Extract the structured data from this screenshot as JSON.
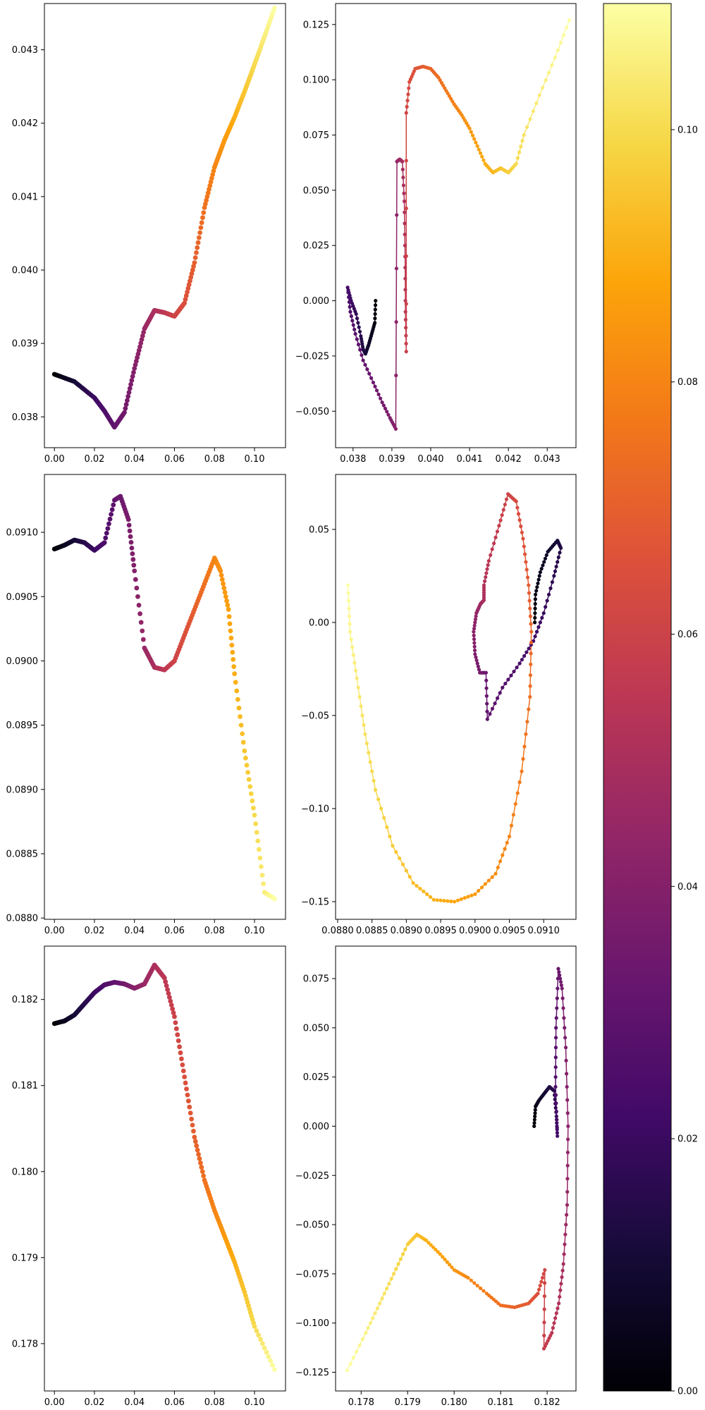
{
  "chart_data": [
    {
      "type": "scatter",
      "panel": "row1-left",
      "title": "",
      "xlabel": "",
      "ylabel": "",
      "xlim": [
        -0.005,
        0.1155
      ],
      "ylim": [
        0.03758,
        0.04363
      ],
      "xticks": [
        "0.00",
        "0.02",
        "0.04",
        "0.06",
        "0.08",
        "0.10"
      ],
      "yticks": [
        "0.038",
        "0.039",
        "0.040",
        "0.041",
        "0.042",
        "0.043"
      ],
      "colormap": "inferno",
      "color_by": "x",
      "connect": false,
      "grid": false,
      "path": [
        [
          0.0,
          0.03858
        ],
        [
          0.01,
          0.03848
        ],
        [
          0.02,
          0.03826
        ],
        [
          0.025,
          0.03808
        ],
        [
          0.03,
          0.03786
        ],
        [
          0.035,
          0.03806
        ],
        [
          0.04,
          0.03866
        ],
        [
          0.045,
          0.0392
        ],
        [
          0.05,
          0.03945
        ],
        [
          0.055,
          0.03942
        ],
        [
          0.06,
          0.03937
        ],
        [
          0.065,
          0.03955
        ],
        [
          0.07,
          0.0401
        ],
        [
          0.075,
          0.04085
        ],
        [
          0.08,
          0.0414
        ],
        [
          0.085,
          0.04177
        ],
        [
          0.09,
          0.04208
        ],
        [
          0.095,
          0.04243
        ],
        [
          0.1,
          0.0428
        ],
        [
          0.105,
          0.04318
        ],
        [
          0.11,
          0.04357
        ]
      ]
    },
    {
      "type": "scatter",
      "panel": "row1-right",
      "title": "",
      "xlabel": "",
      "ylabel": "",
      "xlim": [
        0.03755,
        0.04374
      ],
      "ylim": [
        -0.0665,
        0.1345
      ],
      "xticks": [
        "0.038",
        "0.039",
        "0.040",
        "0.041",
        "0.042",
        "0.043"
      ],
      "yticks": [
        "−0.050",
        "−0.025",
        "0.000",
        "0.025",
        "0.050",
        "0.075",
        "0.100",
        "0.125"
      ],
      "colormap": "inferno",
      "color_range": [
        0,
        0.11
      ],
      "connect": true,
      "grid": false,
      "path": [
        [
          0.03858,
          0.0
        ],
        [
          0.03856,
          -0.01
        ],
        [
          0.03848,
          -0.015
        ],
        [
          0.0384,
          -0.02
        ],
        [
          0.03832,
          -0.024
        ],
        [
          0.03826,
          -0.022
        ],
        [
          0.0382,
          -0.016
        ],
        [
          0.03808,
          -0.006
        ],
        [
          0.03795,
          0.0
        ],
        [
          0.03786,
          0.006
        ],
        [
          0.03793,
          -0.005
        ],
        [
          0.03806,
          -0.015
        ],
        [
          0.03826,
          -0.027
        ],
        [
          0.03852,
          -0.037
        ],
        [
          0.03875,
          -0.046
        ],
        [
          0.03895,
          -0.053
        ],
        [
          0.0391,
          -0.058
        ],
        [
          0.03913,
          0.063
        ],
        [
          0.0392,
          0.064
        ],
        [
          0.03927,
          0.063
        ],
        [
          0.03932,
          0.045
        ],
        [
          0.03934,
          0.02
        ],
        [
          0.03935,
          -0.005
        ],
        [
          0.03937,
          -0.023
        ],
        [
          0.03937,
          0.085
        ],
        [
          0.03945,
          0.099
        ],
        [
          0.0396,
          0.105
        ],
        [
          0.0398,
          0.106
        ],
        [
          0.04,
          0.105
        ],
        [
          0.0402,
          0.101
        ],
        [
          0.0404,
          0.095
        ],
        [
          0.0406,
          0.089
        ],
        [
          0.0408,
          0.084
        ],
        [
          0.041,
          0.078
        ],
        [
          0.0412,
          0.07
        ],
        [
          0.0414,
          0.062
        ],
        [
          0.0416,
          0.058
        ],
        [
          0.0418,
          0.06
        ],
        [
          0.042,
          0.058
        ],
        [
          0.0422,
          0.062
        ],
        [
          0.0424,
          0.075
        ],
        [
          0.0428,
          0.093
        ],
        [
          0.0432,
          0.11
        ],
        [
          0.04357,
          0.127
        ]
      ]
    },
    {
      "type": "scatter",
      "panel": "row2-left",
      "title": "",
      "xlabel": "",
      "ylabel": "",
      "xlim": [
        -0.005,
        0.1155
      ],
      "ylim": [
        0.08799,
        0.09145
      ],
      "xticks": [
        "0.00",
        "0.02",
        "0.04",
        "0.06",
        "0.08",
        "0.10"
      ],
      "yticks": [
        "0.0880",
        "0.0885",
        "0.0890",
        "0.0895",
        "0.0900",
        "0.0905",
        "0.0910"
      ],
      "colormap": "inferno",
      "color_by": "x",
      "connect": false,
      "grid": false,
      "path": [
        [
          0.0,
          0.09087
        ],
        [
          0.005,
          0.0909
        ],
        [
          0.01,
          0.09094
        ],
        [
          0.015,
          0.09092
        ],
        [
          0.02,
          0.09086
        ],
        [
          0.025,
          0.09092
        ],
        [
          0.03,
          0.09125
        ],
        [
          0.033,
          0.09128
        ],
        [
          0.037,
          0.0911
        ],
        [
          0.04,
          0.0907
        ],
        [
          0.045,
          0.0901
        ],
        [
          0.05,
          0.08995
        ],
        [
          0.055,
          0.08993
        ],
        [
          0.06,
          0.09
        ],
        [
          0.065,
          0.0902
        ],
        [
          0.07,
          0.0904
        ],
        [
          0.075,
          0.0906
        ],
        [
          0.08,
          0.0908
        ],
        [
          0.083,
          0.0907
        ],
        [
          0.087,
          0.0904
        ],
        [
          0.09,
          0.0899
        ],
        [
          0.095,
          0.0893
        ],
        [
          0.1,
          0.0888
        ],
        [
          0.105,
          0.0882
        ],
        [
          0.11,
          0.08815
        ]
      ]
    },
    {
      "type": "scatter",
      "panel": "row2-right",
      "title": "",
      "xlabel": "",
      "ylabel": "",
      "xlim": [
        0.08797,
        0.09147
      ],
      "ylim": [
        -0.1595,
        0.0795
      ],
      "xticks": [
        "0.0880",
        "0.0885",
        "0.0890",
        "0.0895",
        "0.0900",
        "0.0905",
        "0.0910"
      ],
      "yticks": [
        "−0.15",
        "−0.10",
        "−0.05",
        "0.00",
        "0.05"
      ],
      "colormap": "inferno",
      "color_range": [
        0,
        0.11
      ],
      "connect": true,
      "grid": false,
      "path": [
        [
          0.09087,
          0.0
        ],
        [
          0.09088,
          0.015
        ],
        [
          0.09095,
          0.027
        ],
        [
          0.09106,
          0.038
        ],
        [
          0.0912,
          0.044
        ],
        [
          0.09125,
          0.04
        ],
        [
          0.09115,
          0.025
        ],
        [
          0.091,
          0.005
        ],
        [
          0.09085,
          -0.01
        ],
        [
          0.09065,
          -0.022
        ],
        [
          0.0904,
          -0.035
        ],
        [
          0.09018,
          -0.052
        ],
        [
          0.09016,
          -0.027
        ],
        [
          0.09007,
          -0.027
        ],
        [
          0.09,
          -0.017
        ],
        [
          0.08998,
          -0.005
        ],
        [
          0.09002,
          0.005
        ],
        [
          0.09008,
          0.01
        ],
        [
          0.09013,
          0.012
        ],
        [
          0.09013,
          0.02
        ],
        [
          0.0902,
          0.033
        ],
        [
          0.09035,
          0.052
        ],
        [
          0.09048,
          0.069
        ],
        [
          0.0906,
          0.065
        ],
        [
          0.0907,
          0.045
        ],
        [
          0.09078,
          0.02
        ],
        [
          0.09082,
          -0.005
        ],
        [
          0.0908,
          -0.04
        ],
        [
          0.09068,
          -0.08
        ],
        [
          0.0905,
          -0.115
        ],
        [
          0.0903,
          -0.135
        ],
        [
          0.09,
          -0.146
        ],
        [
          0.0897,
          -0.15
        ],
        [
          0.0894,
          -0.149
        ],
        [
          0.0891,
          -0.14
        ],
        [
          0.0888,
          -0.12
        ],
        [
          0.08855,
          -0.09
        ],
        [
          0.0884,
          -0.06
        ],
        [
          0.08828,
          -0.03
        ],
        [
          0.08818,
          -0.005
        ],
        [
          0.08815,
          0.02
        ]
      ]
    },
    {
      "type": "scatter",
      "panel": "row3-left",
      "title": "",
      "xlabel": "",
      "ylabel": "",
      "xlim": [
        -0.005,
        0.1155
      ],
      "ylim": [
        0.17745,
        0.18262
      ],
      "xticks": [
        "0.00",
        "0.02",
        "0.04",
        "0.06",
        "0.08",
        "0.10"
      ],
      "yticks": [
        "0.178",
        "0.179",
        "0.180",
        "0.181",
        "0.182"
      ],
      "colormap": "inferno",
      "color_by": "x",
      "connect": false,
      "grid": false,
      "path": [
        [
          0.0,
          0.18172
        ],
        [
          0.005,
          0.18175
        ],
        [
          0.01,
          0.18182
        ],
        [
          0.015,
          0.18195
        ],
        [
          0.02,
          0.18208
        ],
        [
          0.025,
          0.18217
        ],
        [
          0.03,
          0.1822
        ],
        [
          0.035,
          0.18218
        ],
        [
          0.04,
          0.18213
        ],
        [
          0.045,
          0.18218
        ],
        [
          0.05,
          0.1824
        ],
        [
          0.055,
          0.18225
        ],
        [
          0.06,
          0.1818
        ],
        [
          0.065,
          0.1811
        ],
        [
          0.07,
          0.1804
        ],
        [
          0.075,
          0.1799
        ],
        [
          0.08,
          0.17955
        ],
        [
          0.085,
          0.17925
        ],
        [
          0.09,
          0.17895
        ],
        [
          0.095,
          0.1786
        ],
        [
          0.1,
          0.1782
        ],
        [
          0.11,
          0.1777
        ]
      ]
    },
    {
      "type": "scatter",
      "panel": "row3-right",
      "title": "",
      "xlabel": "",
      "ylabel": "",
      "xlim": [
        0.17745,
        0.18262
      ],
      "ylim": [
        -0.1345,
        0.0915
      ],
      "xticks": [
        "0.178",
        "0.179",
        "0.180",
        "0.181",
        "0.182"
      ],
      "yticks": [
        "−0.125",
        "−0.100",
        "−0.075",
        "−0.050",
        "−0.025",
        "0.000",
        "0.025",
        "0.050",
        "0.075"
      ],
      "colormap": "inferno",
      "color_range": [
        0,
        0.11
      ],
      "connect": true,
      "grid": false,
      "path": [
        [
          0.18172,
          0.0
        ],
        [
          0.18175,
          0.01
        ],
        [
          0.18182,
          0.013
        ],
        [
          0.18195,
          0.017
        ],
        [
          0.18205,
          0.02
        ],
        [
          0.18215,
          0.018
        ],
        [
          0.1822,
          0.005
        ],
        [
          0.18222,
          -0.005
        ],
        [
          0.18218,
          0.02
        ],
        [
          0.18219,
          0.05
        ],
        [
          0.18224,
          0.08
        ],
        [
          0.18232,
          0.07
        ],
        [
          0.1824,
          0.04
        ],
        [
          0.18245,
          0.0
        ],
        [
          0.18243,
          -0.04
        ],
        [
          0.18235,
          -0.07
        ],
        [
          0.18225,
          -0.09
        ],
        [
          0.1821,
          -0.105
        ],
        [
          0.18193,
          -0.113
        ],
        [
          0.18195,
          -0.073
        ],
        [
          0.1818,
          -0.085
        ],
        [
          0.1816,
          -0.09
        ],
        [
          0.1813,
          -0.092
        ],
        [
          0.181,
          -0.091
        ],
        [
          0.1807,
          -0.085
        ],
        [
          0.1803,
          -0.077
        ],
        [
          0.18,
          -0.073
        ],
        [
          0.1797,
          -0.065
        ],
        [
          0.1794,
          -0.058
        ],
        [
          0.1792,
          -0.055
        ],
        [
          0.179,
          -0.06
        ],
        [
          0.1787,
          -0.075
        ],
        [
          0.1784,
          -0.09
        ],
        [
          0.1781,
          -0.105
        ],
        [
          0.1777,
          -0.124
        ]
      ]
    },
    {
      "type": "colorbar",
      "panel": "colorbar",
      "colormap": "inferno",
      "range": [
        0,
        0.11
      ],
      "ticks": [
        0.0,
        0.02,
        0.04,
        0.06,
        0.08,
        0.1
      ],
      "tick_labels": [
        "0.00",
        "0.02",
        "0.04",
        "0.06",
        "0.08",
        "0.10"
      ],
      "label": ""
    }
  ]
}
